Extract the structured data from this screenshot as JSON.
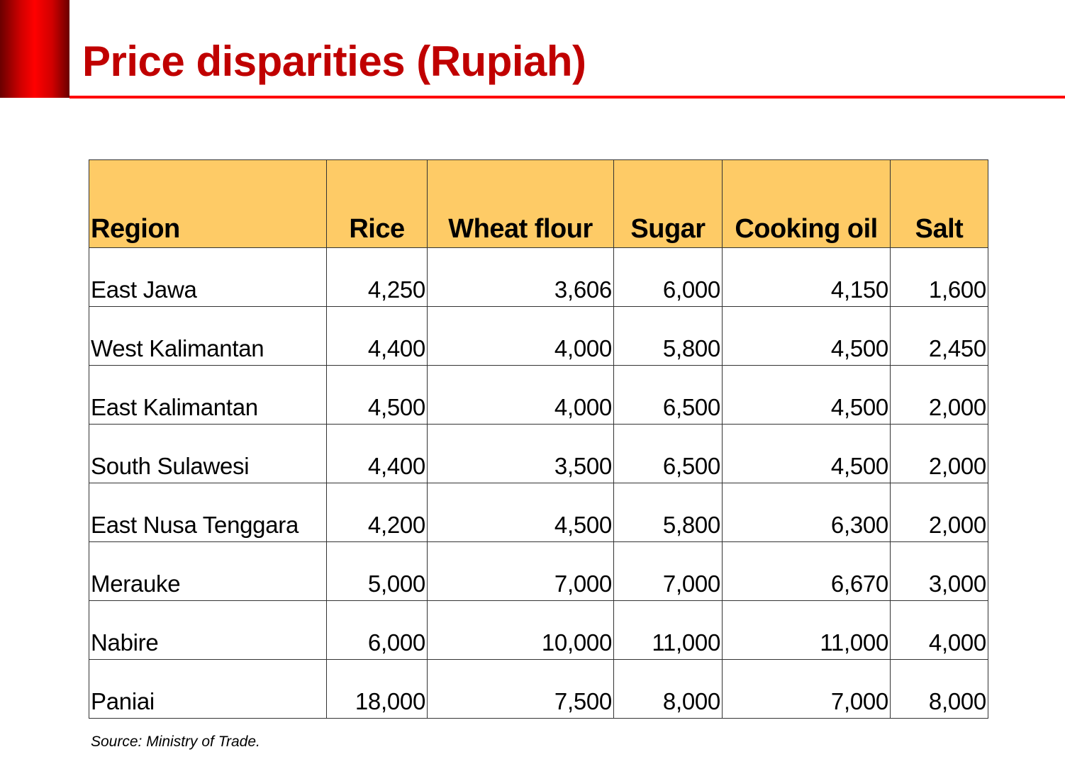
{
  "title": "Price disparities (Rupiah)",
  "colors": {
    "title": "#c00000",
    "accent": "#ff0000",
    "header_fill": "#fecb66"
  },
  "table": {
    "headers": [
      "Region",
      "Rice",
      "Wheat flour",
      "Sugar",
      "Cooking oil",
      "Salt"
    ],
    "rows": [
      [
        "East Jawa",
        "4,250",
        "3,606",
        "6,000",
        "4,150",
        "1,600"
      ],
      [
        "West Kalimantan",
        "4,400",
        "4,000",
        "5,800",
        "4,500",
        "2,450"
      ],
      [
        "East Kalimantan",
        "4,500",
        "4,000",
        "6,500",
        "4,500",
        "2,000"
      ],
      [
        "South Sulawesi",
        "4,400",
        "3,500",
        "6,500",
        "4,500",
        "2,000"
      ],
      [
        "East Nusa Tenggara",
        "4,200",
        "4,500",
        "5,800",
        "6,300",
        "2,000"
      ],
      [
        "Merauke",
        "5,000",
        "7,000",
        "7,000",
        "6,670",
        "3,000"
      ],
      [
        "Nabire",
        "6,000",
        "10,000",
        "11,000",
        "11,000",
        "4,000"
      ],
      [
        "Paniai",
        "18,000",
        "7,500",
        "8,000",
        "7,000",
        "8,000"
      ]
    ]
  },
  "source": "Source: Ministry of Trade."
}
